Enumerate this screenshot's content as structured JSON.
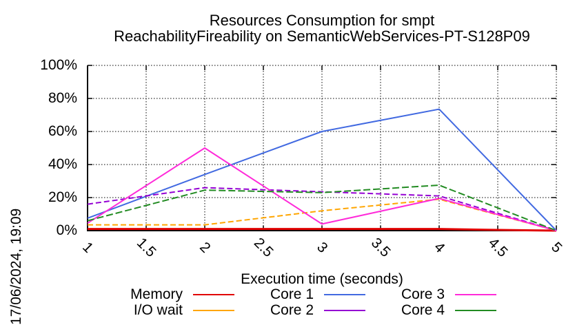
{
  "title": {
    "line1": "Resources Consumption for smpt",
    "line2": "ReachabilityFireability on SemanticWebServices-PT-S128P09"
  },
  "date_label": "17/06/2024, 19:09",
  "chart_data": {
    "type": "line",
    "title": "Resources Consumption for smpt ReachabilityFireability on SemanticWebServices-PT-S128P09",
    "xlabel": "Execution time (seconds)",
    "ylabel": "",
    "xlim": [
      1,
      5
    ],
    "ylim": [
      0,
      100
    ],
    "grid": true,
    "grid_style": "dotted-black",
    "legend_position": "bottom",
    "x_ticks": [
      1,
      1.5,
      2,
      2.5,
      3,
      3.5,
      4,
      4.5,
      5
    ],
    "x_tick_labels": [
      "1",
      "1.5",
      "2",
      "2.5",
      "3",
      "3.5",
      "4",
      "4.5",
      "5"
    ],
    "y_ticks": [
      0,
      20,
      40,
      60,
      80,
      100
    ],
    "y_tick_labels": [
      "0%",
      "20%",
      "40%",
      "60%",
      "80%",
      "100%"
    ],
    "series": [
      {
        "name": "Memory",
        "color": "#e10000",
        "width": 3,
        "dash": "",
        "points": [
          [
            1,
            1
          ],
          [
            2,
            1
          ],
          [
            3,
            1
          ],
          [
            4,
            1
          ],
          [
            4.4,
            0.5
          ],
          [
            5,
            0
          ]
        ]
      },
      {
        "name": "I/O wait",
        "color": "#ffa500",
        "width": 2,
        "dash": "8,4",
        "points": [
          [
            1,
            3.5
          ],
          [
            2,
            3.5
          ],
          [
            3,
            12
          ],
          [
            4,
            19
          ],
          [
            5,
            0
          ]
        ]
      },
      {
        "name": "Core 1",
        "color": "#4169e1",
        "width": 2,
        "dash": "",
        "points": [
          [
            1,
            7.5
          ],
          [
            2,
            34
          ],
          [
            3,
            60
          ],
          [
            4,
            73.5
          ],
          [
            5,
            0
          ]
        ]
      },
      {
        "name": "Core 2",
        "color": "#9400d3",
        "width": 2,
        "dash": "8,4",
        "points": [
          [
            1,
            16
          ],
          [
            2,
            26
          ],
          [
            3,
            23.5
          ],
          [
            4,
            21
          ],
          [
            5,
            0
          ]
        ]
      },
      {
        "name": "Core 3",
        "color": "#ff2ad9",
        "width": 2,
        "dash": "",
        "points": [
          [
            1,
            4.5
          ],
          [
            2,
            50
          ],
          [
            3,
            4
          ],
          [
            4,
            19.5
          ],
          [
            5,
            0
          ]
        ]
      },
      {
        "name": "Core 4",
        "color": "#228b22",
        "width": 2,
        "dash": "10,4",
        "points": [
          [
            1,
            6
          ],
          [
            2,
            24.5
          ],
          [
            3,
            23
          ],
          [
            4,
            27.5
          ],
          [
            5,
            0
          ]
        ]
      }
    ]
  },
  "legend": {
    "items": [
      {
        "label": "Memory",
        "color": "#e10000"
      },
      {
        "label": "I/O wait",
        "color": "#ffa500"
      },
      {
        "label": "Core 1",
        "color": "#4169e1"
      },
      {
        "label": "Core 2",
        "color": "#9400d3"
      },
      {
        "label": "Core 3",
        "color": "#ff2ad9"
      },
      {
        "label": "Core 4",
        "color": "#228b22"
      }
    ]
  }
}
